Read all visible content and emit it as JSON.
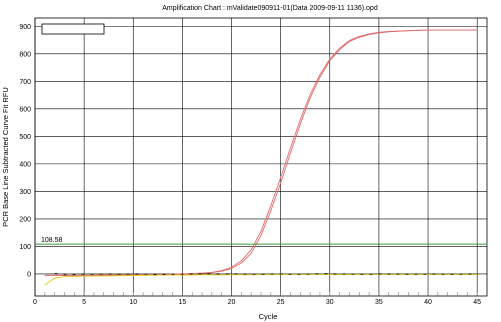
{
  "chart_data": {
    "type": "line",
    "title": "Amplification Chart : mValidate090911-01(Data 2009-09-11 1136).opd",
    "xlabel": "Cycle",
    "ylabel": "PCR Base Line Subtracted Curve Fit RFU",
    "xlim": [
      0,
      46
    ],
    "ylim": [
      -80,
      930
    ],
    "x_ticks": [
      0,
      5,
      10,
      15,
      20,
      25,
      30,
      35,
      40,
      45
    ],
    "y_ticks": [
      0,
      100,
      200,
      300,
      400,
      500,
      600,
      700,
      800,
      900
    ],
    "grid": true,
    "legend": "top-left",
    "threshold": {
      "value": 108.58,
      "label": "108.58",
      "color": "#3a9a3a"
    },
    "series": [
      {
        "color": "#e06a6a",
        "x": [
          1,
          3,
          5,
          7,
          9,
          11,
          13,
          15,
          17,
          18,
          19,
          20,
          21,
          22,
          23,
          24,
          25,
          26,
          27,
          28,
          29,
          30,
          31,
          32,
          33,
          34,
          35,
          36,
          38,
          40,
          42,
          44,
          45
        ],
        "y": [
          -5,
          -5,
          -5,
          -4,
          -4,
          -3,
          -2,
          0,
          3,
          5,
          10,
          20,
          40,
          75,
          140,
          230,
          330,
          440,
          545,
          640,
          715,
          775,
          815,
          845,
          860,
          870,
          876,
          880,
          884,
          886,
          886,
          886,
          886
        ]
      },
      {
        "color": "#e06a6a",
        "x": [
          1,
          3,
          5,
          7,
          9,
          11,
          13,
          15,
          17,
          18,
          19,
          20,
          21,
          22,
          23,
          24,
          25,
          26,
          27,
          28,
          29,
          30,
          31,
          32,
          33,
          34,
          35,
          36,
          38,
          40,
          42,
          44,
          45
        ],
        "y": [
          -5,
          -5,
          -5,
          -4,
          -4,
          -3,
          -2,
          0,
          3,
          6,
          12,
          24,
          48,
          88,
          155,
          248,
          350,
          458,
          560,
          652,
          724,
          781,
          820,
          848,
          863,
          872,
          878,
          881,
          884,
          886,
          886,
          886,
          886
        ]
      },
      {
        "color": "#e0c800",
        "x": [
          1,
          2,
          3,
          5,
          7,
          9,
          11,
          13,
          15,
          17,
          20,
          25,
          30,
          35,
          40,
          45
        ],
        "y": [
          -40,
          -15,
          -10,
          -8,
          -7,
          -6,
          -5,
          -4,
          -4,
          -3,
          -3,
          -2,
          -2,
          -2,
          -2,
          -2
        ]
      },
      {
        "color": "#222222",
        "x": [
          2,
          3,
          4,
          5,
          6,
          7,
          8,
          9,
          10,
          11,
          12,
          13,
          14,
          15,
          16,
          17,
          18,
          19,
          20,
          21,
          22,
          23,
          24,
          25,
          26,
          27,
          28,
          29,
          30,
          31,
          32,
          33,
          34,
          35,
          36,
          37,
          38,
          39,
          40,
          41,
          42,
          43,
          44,
          45
        ],
        "y": [
          2,
          -3,
          -2,
          -1,
          -1,
          0,
          0,
          -1,
          0,
          0,
          -2,
          -2,
          -1,
          -1,
          0,
          1,
          1,
          0,
          1,
          0,
          -1,
          -1,
          0,
          0,
          -1,
          -1,
          0,
          1,
          1,
          0,
          0,
          -1,
          -1,
          0,
          0,
          0,
          -1,
          -1,
          0,
          0,
          -1,
          -1,
          0,
          0
        ]
      }
    ]
  }
}
